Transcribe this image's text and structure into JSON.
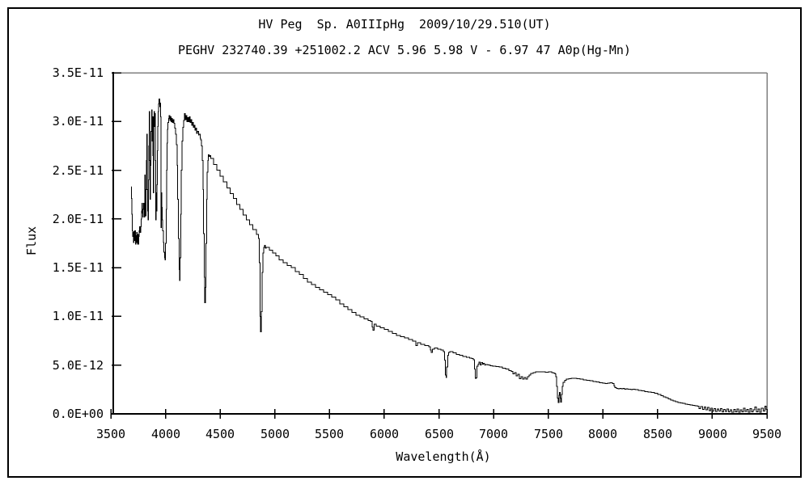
{
  "window": {
    "background": "#ffffff",
    "outer_border_color": "#000000"
  },
  "chart_data": {
    "type": "line",
    "title": "HV Peg  Sp. A0IIIpHg  2009/10/29.510(UT)",
    "subtitle": "PEGHV 232740.39 +251002.2 ACV 5.96 5.98 V - 6.97 47 A0p(Hg-Mn)",
    "xlabel": "Wavelength(Å)",
    "ylabel": "Flux",
    "xlim": [
      3500,
      9500
    ],
    "ylim": [
      0,
      3.5e-11
    ],
    "ylim_scaled": [
      0,
      3.5
    ],
    "flux_scale": "1e-11",
    "grid": "off",
    "legend": "none",
    "line_color": "#000000",
    "axis_color": "#000000",
    "frame_color": "#808080",
    "x_tick_values": [
      3500,
      4000,
      4500,
      5000,
      5500,
      6000,
      6500,
      7000,
      7500,
      8000,
      8500,
      9000,
      9500
    ],
    "x_tick_labels": [
      "3500",
      "4000",
      "4500",
      "5000",
      "5500",
      "6000",
      "6500",
      "7000",
      "7500",
      "8000",
      "8500",
      "9000",
      "9500"
    ],
    "y_tick_values": [
      0,
      0.5,
      1.0,
      1.5,
      2.0,
      2.5,
      3.0,
      3.5
    ],
    "y_tick_labels": [
      "0.0E+00",
      "5.0E-12",
      "1.0E-11",
      "1.5E-11",
      "2.0E-11",
      "2.5E-11",
      "3.0E-11",
      "3.5E-11"
    ],
    "points": [
      [
        3688,
        2.33
      ],
      [
        3690,
        2.21
      ],
      [
        3693,
        2.05
      ],
      [
        3696,
        1.88
      ],
      [
        3700,
        1.82
      ],
      [
        3704,
        1.86
      ],
      [
        3708,
        1.76
      ],
      [
        3712,
        1.87
      ],
      [
        3716,
        1.78
      ],
      [
        3720,
        1.88
      ],
      [
        3724,
        1.74
      ],
      [
        3728,
        1.83
      ],
      [
        3732,
        1.76
      ],
      [
        3736,
        1.86
      ],
      [
        3740,
        1.8
      ],
      [
        3744,
        1.74
      ],
      [
        3748,
        1.84
      ],
      [
        3752,
        1.74
      ],
      [
        3756,
        1.82
      ],
      [
        3760,
        1.88
      ],
      [
        3764,
        1.92
      ],
      [
        3768,
        1.86
      ],
      [
        3772,
        1.92
      ],
      [
        3776,
        2.0
      ],
      [
        3780,
        2.08
      ],
      [
        3784,
        2.16
      ],
      [
        3788,
        2.06
      ],
      [
        3792,
        2.02
      ],
      [
        3796,
        2.1
      ],
      [
        3800,
        2.16
      ],
      [
        3803,
        2.16
      ],
      [
        3806,
        2.02
      ],
      [
        3810,
        2.45
      ],
      [
        3813,
        2.1
      ],
      [
        3816,
        2.03
      ],
      [
        3820,
        2.3
      ],
      [
        3824,
        2.6
      ],
      [
        3828,
        2.87
      ],
      [
        3832,
        2.3
      ],
      [
        3836,
        2.08
      ],
      [
        3840,
        1.99
      ],
      [
        3844,
        2.4
      ],
      [
        3848,
        2.75
      ],
      [
        3852,
        3.1
      ],
      [
        3856,
        2.6
      ],
      [
        3860,
        2.2
      ],
      [
        3864,
        2.55
      ],
      [
        3868,
        2.9
      ],
      [
        3872,
        3.12
      ],
      [
        3876,
        2.8
      ],
      [
        3880,
        3.05
      ],
      [
        3884,
        2.65
      ],
      [
        3888,
        2.27
      ],
      [
        3892,
        3.05
      ],
      [
        3896,
        3.1
      ],
      [
        3900,
        2.95
      ],
      [
        3904,
        3.08
      ],
      [
        3907,
        2.6
      ],
      [
        3910,
        1.99
      ],
      [
        3914,
        2.27
      ],
      [
        3918,
        2.08
      ],
      [
        3922,
        2.35
      ],
      [
        3926,
        2.7
      ],
      [
        3930,
        2.95
      ],
      [
        3934,
        3.1
      ],
      [
        3938,
        3.18
      ],
      [
        3942,
        3.23
      ],
      [
        3946,
        3.15
      ],
      [
        3950,
        3.19
      ],
      [
        3954,
        3.05
      ],
      [
        3957,
        2.6
      ],
      [
        3960,
        1.91
      ],
      [
        3963,
        2.27
      ],
      [
        3966,
        2.12
      ],
      [
        3970,
        1.99
      ],
      [
        3975,
        1.88
      ],
      [
        3980,
        1.76
      ],
      [
        3986,
        1.66
      ],
      [
        3992,
        1.6
      ],
      [
        3996,
        1.58
      ],
      [
        4001,
        1.75
      ],
      [
        4005,
        2.1
      ],
      [
        4009,
        2.5
      ],
      [
        4013,
        2.78
      ],
      [
        4018,
        2.92
      ],
      [
        4023,
        2.99
      ],
      [
        4028,
        3.03
      ],
      [
        4033,
        3.06
      ],
      [
        4039,
        3.01
      ],
      [
        4045,
        3.05
      ],
      [
        4051,
        3.0
      ],
      [
        4057,
        3.03
      ],
      [
        4063,
        2.99
      ],
      [
        4070,
        3.02
      ],
      [
        4077,
        2.98
      ],
      [
        4084,
        2.93
      ],
      [
        4091,
        2.87
      ],
      [
        4098,
        2.76
      ],
      [
        4105,
        2.55
      ],
      [
        4112,
        2.2
      ],
      [
        4118,
        1.8
      ],
      [
        4124,
        1.48
      ],
      [
        4129,
        1.37
      ],
      [
        4134,
        1.6
      ],
      [
        4139,
        2.05
      ],
      [
        4145,
        2.5
      ],
      [
        4151,
        2.8
      ],
      [
        4158,
        2.94
      ],
      [
        4166,
        3.01
      ],
      [
        4174,
        3.08
      ],
      [
        4181,
        3.02
      ],
      [
        4188,
        3.06
      ],
      [
        4196,
        3.0
      ],
      [
        4203,
        3.04
      ],
      [
        4211,
        3.0
      ],
      [
        4218,
        3.05
      ],
      [
        4226,
        2.99
      ],
      [
        4233,
        3.02
      ],
      [
        4241,
        2.96
      ],
      [
        4248,
        2.99
      ],
      [
        4256,
        2.94
      ],
      [
        4263,
        2.96
      ],
      [
        4271,
        2.91
      ],
      [
        4278,
        2.93
      ],
      [
        4286,
        2.88
      ],
      [
        4293,
        2.9
      ],
      [
        4301,
        2.86
      ],
      [
        4308,
        2.87
      ],
      [
        4316,
        2.83
      ],
      [
        4323,
        2.81
      ],
      [
        4330,
        2.75
      ],
      [
        4336,
        2.6
      ],
      [
        4342,
        2.3
      ],
      [
        4348,
        1.85
      ],
      [
        4354,
        1.4
      ],
      [
        4360,
        1.14
      ],
      [
        4365,
        1.3
      ],
      [
        4370,
        1.75
      ],
      [
        4375,
        2.2
      ],
      [
        4380,
        2.48
      ],
      [
        4386,
        2.6
      ],
      [
        4392,
        2.66
      ],
      [
        4398,
        2.64
      ],
      [
        4405,
        2.65
      ],
      [
        4412,
        2.62
      ],
      [
        4440,
        2.56
      ],
      [
        4470,
        2.5
      ],
      [
        4500,
        2.44
      ],
      [
        4530,
        2.38
      ],
      [
        4560,
        2.32
      ],
      [
        4590,
        2.26
      ],
      [
        4620,
        2.21
      ],
      [
        4650,
        2.15
      ],
      [
        4680,
        2.1
      ],
      [
        4710,
        2.04
      ],
      [
        4740,
        1.99
      ],
      [
        4770,
        1.94
      ],
      [
        4800,
        1.89
      ],
      [
        4830,
        1.84
      ],
      [
        4850,
        1.8
      ],
      [
        4858,
        1.55
      ],
      [
        4864,
        1.0
      ],
      [
        4870,
        0.84
      ],
      [
        4876,
        1.05
      ],
      [
        4883,
        1.45
      ],
      [
        4890,
        1.65
      ],
      [
        4897,
        1.71
      ],
      [
        4905,
        1.73
      ],
      [
        4912,
        1.7
      ],
      [
        4920,
        1.71
      ],
      [
        4950,
        1.68
      ],
      [
        4980,
        1.65
      ],
      [
        5010,
        1.62
      ],
      [
        5040,
        1.58
      ],
      [
        5076,
        1.55
      ],
      [
        5113,
        1.52
      ],
      [
        5150,
        1.5
      ],
      [
        5187,
        1.46
      ],
      [
        5224,
        1.43
      ],
      [
        5261,
        1.39
      ],
      [
        5298,
        1.35
      ],
      [
        5335,
        1.325
      ],
      [
        5372,
        1.3
      ],
      [
        5409,
        1.275
      ],
      [
        5446,
        1.25
      ],
      [
        5483,
        1.225
      ],
      [
        5520,
        1.2
      ],
      [
        5557,
        1.17
      ],
      [
        5594,
        1.13
      ],
      [
        5631,
        1.1
      ],
      [
        5668,
        1.07
      ],
      [
        5705,
        1.04
      ],
      [
        5742,
        1.01
      ],
      [
        5779,
        0.995
      ],
      [
        5816,
        0.975
      ],
      [
        5853,
        0.957
      ],
      [
        5875,
        0.95
      ],
      [
        5888,
        0.89
      ],
      [
        5898,
        0.86
      ],
      [
        5908,
        0.92
      ],
      [
        5927,
        0.9
      ],
      [
        5964,
        0.885
      ],
      [
        6001,
        0.865
      ],
      [
        6038,
        0.845
      ],
      [
        6075,
        0.825
      ],
      [
        6112,
        0.805
      ],
      [
        6149,
        0.79
      ],
      [
        6186,
        0.78
      ],
      [
        6223,
        0.765
      ],
      [
        6260,
        0.745
      ],
      [
        6290,
        0.7
      ],
      [
        6305,
        0.73
      ],
      [
        6334,
        0.715
      ],
      [
        6371,
        0.7
      ],
      [
        6408,
        0.69
      ],
      [
        6422,
        0.655
      ],
      [
        6430,
        0.63
      ],
      [
        6440,
        0.665
      ],
      [
        6460,
        0.675
      ],
      [
        6490,
        0.665
      ],
      [
        6520,
        0.655
      ],
      [
        6541,
        0.64
      ],
      [
        6551,
        0.55
      ],
      [
        6560,
        0.4
      ],
      [
        6565,
        0.375
      ],
      [
        6572,
        0.48
      ],
      [
        6580,
        0.6
      ],
      [
        6590,
        0.63
      ],
      [
        6600,
        0.64
      ],
      [
        6630,
        0.625
      ],
      [
        6660,
        0.61
      ],
      [
        6690,
        0.6
      ],
      [
        6720,
        0.59
      ],
      [
        6750,
        0.58
      ],
      [
        6780,
        0.572
      ],
      [
        6800,
        0.568
      ],
      [
        6815,
        0.555
      ],
      [
        6825,
        0.46
      ],
      [
        6832,
        0.365
      ],
      [
        6840,
        0.37
      ],
      [
        6848,
        0.49
      ],
      [
        6858,
        0.51
      ],
      [
        6868,
        0.53
      ],
      [
        6878,
        0.5
      ],
      [
        6888,
        0.525
      ],
      [
        6898,
        0.51
      ],
      [
        6908,
        0.52
      ],
      [
        6918,
        0.5
      ],
      [
        6930,
        0.505
      ],
      [
        6948,
        0.5
      ],
      [
        6971,
        0.495
      ],
      [
        6993,
        0.49
      ],
      [
        7022,
        0.487
      ],
      [
        7052,
        0.48
      ],
      [
        7082,
        0.47
      ],
      [
        7111,
        0.46
      ],
      [
        7141,
        0.445
      ],
      [
        7162,
        0.435
      ],
      [
        7178,
        0.41
      ],
      [
        7192,
        0.425
      ],
      [
        7207,
        0.39
      ],
      [
        7222,
        0.405
      ],
      [
        7237,
        0.36
      ],
      [
        7252,
        0.38
      ],
      [
        7267,
        0.355
      ],
      [
        7282,
        0.375
      ],
      [
        7296,
        0.355
      ],
      [
        7311,
        0.38
      ],
      [
        7326,
        0.4
      ],
      [
        7341,
        0.415
      ],
      [
        7363,
        0.425
      ],
      [
        7385,
        0.43
      ],
      [
        7415,
        0.432
      ],
      [
        7444,
        0.43
      ],
      [
        7474,
        0.428
      ],
      [
        7503,
        0.43
      ],
      [
        7533,
        0.425
      ],
      [
        7548,
        0.42
      ],
      [
        7560,
        0.41
      ],
      [
        7570,
        0.38
      ],
      [
        7578,
        0.28
      ],
      [
        7584,
        0.16
      ],
      [
        7590,
        0.115
      ],
      [
        7597,
        0.19
      ],
      [
        7603,
        0.22
      ],
      [
        7608,
        0.16
      ],
      [
        7614,
        0.12
      ],
      [
        7621,
        0.2
      ],
      [
        7629,
        0.28
      ],
      [
        7637,
        0.325
      ],
      [
        7651,
        0.345
      ],
      [
        7666,
        0.355
      ],
      [
        7688,
        0.362
      ],
      [
        7711,
        0.365
      ],
      [
        7733,
        0.363
      ],
      [
        7762,
        0.36
      ],
      [
        7792,
        0.355
      ],
      [
        7821,
        0.35
      ],
      [
        7851,
        0.345
      ],
      [
        7881,
        0.34
      ],
      [
        7910,
        0.333
      ],
      [
        7940,
        0.327
      ],
      [
        7970,
        0.32
      ],
      [
        7999,
        0.315
      ],
      [
        8022,
        0.312
      ],
      [
        8044,
        0.315
      ],
      [
        8066,
        0.318
      ],
      [
        8088,
        0.312
      ],
      [
        8100,
        0.285
      ],
      [
        8110,
        0.268
      ],
      [
        8125,
        0.262
      ],
      [
        8140,
        0.258
      ],
      [
        8155,
        0.263
      ],
      [
        8170,
        0.257
      ],
      [
        8184,
        0.262
      ],
      [
        8199,
        0.255
      ],
      [
        8214,
        0.258
      ],
      [
        8229,
        0.252
      ],
      [
        8244,
        0.255
      ],
      [
        8258,
        0.25
      ],
      [
        8273,
        0.252
      ],
      [
        8295,
        0.247
      ],
      [
        8325,
        0.242
      ],
      [
        8354,
        0.237
      ],
      [
        8384,
        0.23
      ],
      [
        8414,
        0.226
      ],
      [
        8443,
        0.22
      ],
      [
        8473,
        0.21
      ],
      [
        8502,
        0.198
      ],
      [
        8532,
        0.185
      ],
      [
        8554,
        0.175
      ],
      [
        8576,
        0.165
      ],
      [
        8599,
        0.152
      ],
      [
        8621,
        0.142
      ],
      [
        8643,
        0.133
      ],
      [
        8665,
        0.126
      ],
      [
        8687,
        0.118
      ],
      [
        8710,
        0.112
      ],
      [
        8732,
        0.106
      ],
      [
        8754,
        0.1
      ],
      [
        8776,
        0.096
      ],
      [
        8798,
        0.09
      ],
      [
        8821,
        0.086
      ],
      [
        8843,
        0.082
      ],
      [
        8865,
        0.078
      ],
      [
        8880,
        0.055
      ],
      [
        8895,
        0.075
      ],
      [
        8910,
        0.045
      ],
      [
        8925,
        0.07
      ],
      [
        8940,
        0.04
      ],
      [
        8955,
        0.065
      ],
      [
        8970,
        0.035
      ],
      [
        8985,
        0.06
      ],
      [
        9000,
        0.03
      ],
      [
        9015,
        0.055
      ],
      [
        9030,
        0.025
      ],
      [
        9045,
        0.05
      ],
      [
        9060,
        0.03
      ],
      [
        9075,
        0.055
      ],
      [
        9090,
        0.02
      ],
      [
        9105,
        0.045
      ],
      [
        9120,
        0.025
      ],
      [
        9135,
        0.05
      ],
      [
        9150,
        0.02
      ],
      [
        9165,
        0.04
      ],
      [
        9180,
        0.015
      ],
      [
        9195,
        0.045
      ],
      [
        9210,
        0.02
      ],
      [
        9225,
        0.05
      ],
      [
        9240,
        0.015
      ],
      [
        9255,
        0.04
      ],
      [
        9270,
        0.02
      ],
      [
        9285,
        0.06
      ],
      [
        9300,
        0.025
      ],
      [
        9315,
        0.045
      ],
      [
        9330,
        0.015
      ],
      [
        9345,
        0.055
      ],
      [
        9360,
        0.02
      ],
      [
        9375,
        0.04
      ],
      [
        9390,
        0.07
      ],
      [
        9405,
        0.02
      ],
      [
        9420,
        0.05
      ],
      [
        9435,
        0.015
      ],
      [
        9450,
        0.06
      ],
      [
        9465,
        0.03
      ],
      [
        9480,
        0.08
      ],
      [
        9494,
        0.04
      ]
    ]
  }
}
